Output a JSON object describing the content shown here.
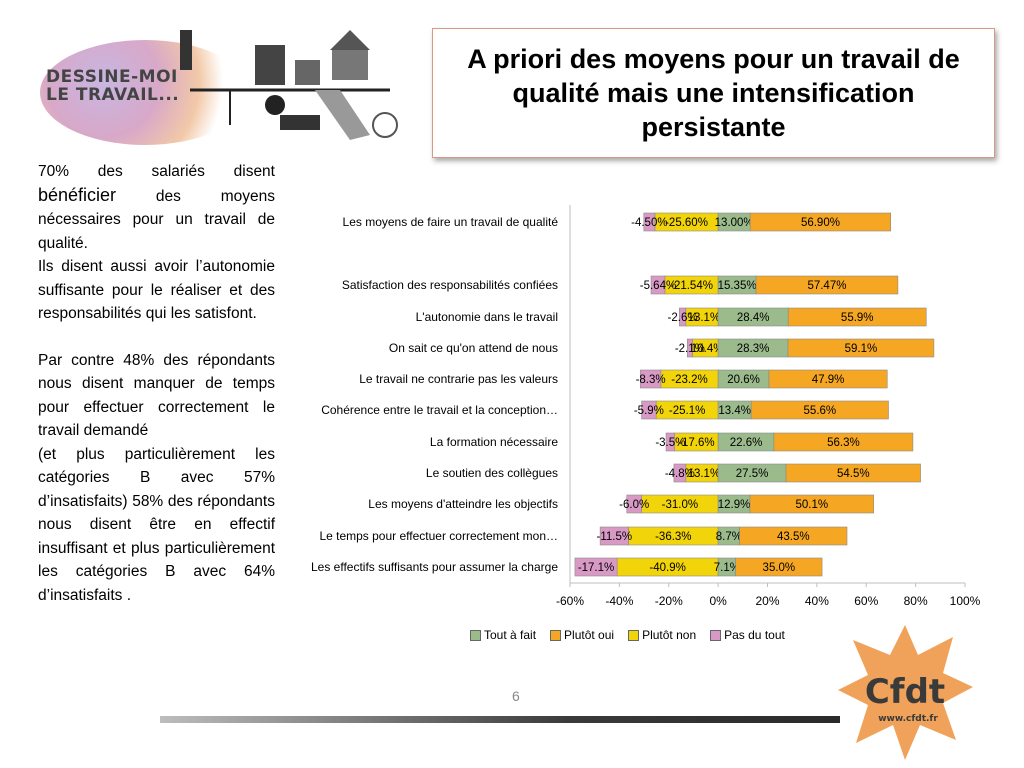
{
  "header": {
    "logo_line1": "DESSINE-MOI",
    "logo_line2": "LE TRAVAIL...",
    "title": "A priori des moyens pour un travail de qualité mais une intensification persistante"
  },
  "left_text": {
    "p1_a": "70% des salariés disent ",
    "p1_big": "bénéficier",
    "p1_b": " des moyens nécessaires pour un travail de qualité.",
    "p2": "Ils disent aussi avoir l’autonomie suffisante pour le réaliser et des responsabilités qui les satisfont.",
    "p3": "Par contre 48% des répondants nous disent manquer de temps pour effectuer correctement le travail demandé",
    "p4": "(et plus particulièrement les catégories B avec 57% d’insatisfaits) 58% des répondants nous disent être en effectif insuffisant et plus particulièrement les catégories B avec 64% d’insatisfaits ."
  },
  "page_number": "6",
  "cfdt_logo": {
    "text": "Cfdt",
    "url": "www.cfdt.fr"
  },
  "colors": {
    "tout_a_fait": "#9bbb8c",
    "plutot_oui": "#f5a623",
    "plutot_non": "#f2d40a",
    "pas_du_tout": "#d89ac4"
  },
  "chart_data": {
    "type": "bar",
    "orientation": "horizontal-diverging",
    "categories": [
      "Les moyens de faire un travail de qualité",
      "Satisfaction des responsabilités  confiées",
      "L'autonomie dans le travail",
      "On sait ce qu'on attend de nous",
      "Le travail ne contrarie pas les valeurs",
      "Cohérence entre le travail et la conception…",
      "La formation nécessaire",
      "Le soutien des collègues",
      "Les moyens d'atteindre les objectifs",
      "Le temps pour effectuer correctement mon…",
      "Les  effectifs suffisants pour assumer la charge"
    ],
    "series": [
      {
        "name": "Tout à fait",
        "values": [
          13.0,
          15.35,
          28.4,
          28.3,
          20.6,
          13.4,
          22.6,
          27.5,
          12.9,
          8.7,
          7.1
        ],
        "labels": [
          "13.00%",
          "15.35%",
          "28.4%",
          "28.3%",
          "20.6%",
          "13.4%",
          "22.6%",
          "27.5%",
          "12.9%",
          "8.7%",
          "7.1%"
        ]
      },
      {
        "name": "Plutôt oui",
        "values": [
          56.9,
          57.47,
          55.9,
          59.1,
          47.9,
          55.6,
          56.3,
          54.5,
          50.1,
          43.5,
          35.0
        ],
        "labels": [
          "56.90%",
          "57.47%",
          "55.9%",
          "59.1%",
          "47.9%",
          "55.6%",
          "56.3%",
          "54.5%",
          "50.1%",
          "43.5%",
          "35.0%"
        ]
      },
      {
        "name": "Plutôt non",
        "values": [
          -25.6,
          -21.54,
          -13.1,
          -10.4,
          -23.2,
          -25.1,
          -17.6,
          -13.1,
          -31.0,
          -36.3,
          -40.9
        ],
        "labels": [
          "-25.60%",
          "-21.54%",
          "-13.1%",
          "-10.4%",
          "-23.2%",
          "-25.1%",
          "-17.6%",
          "-13.1%",
          "-31.0%",
          "-36.3%",
          "-40.9%"
        ]
      },
      {
        "name": "Pas du tout",
        "values": [
          -4.5,
          -5.64,
          -2.6,
          -2.1,
          -8.3,
          -5.9,
          -3.5,
          -4.8,
          -6.0,
          -11.5,
          -17.1
        ],
        "labels": [
          "-4.50%",
          "-5.64%",
          "-2.6%",
          "-2.1%",
          "-8.3%",
          "-5.9%",
          "-3.5%",
          "-4.8%",
          "-6.0%",
          "-11.5%",
          "-17.1%"
        ]
      }
    ],
    "xlim": [
      -60,
      100
    ],
    "xticks": [
      "-60%",
      "-40%",
      "-20%",
      "0%",
      "20%",
      "40%",
      "60%",
      "80%",
      "100%"
    ],
    "legend": [
      "Tout à fait",
      "Plutôt oui",
      "Plutôt non",
      "Pas du tout"
    ],
    "legend_position": "bottom"
  }
}
